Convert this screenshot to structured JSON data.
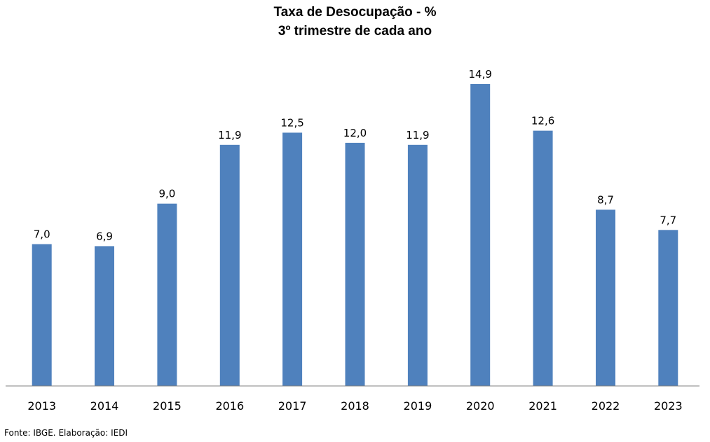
{
  "chart_data": {
    "type": "bar",
    "title": "Taxa de Desocupação - %",
    "subtitle": "3º trimestre de cada ano",
    "categories": [
      "2013",
      "2014",
      "2015",
      "2016",
      "2017",
      "2018",
      "2019",
      "2020",
      "2021",
      "2022",
      "2023"
    ],
    "values": [
      7.0,
      6.9,
      9.0,
      11.9,
      12.5,
      12.0,
      11.9,
      14.9,
      12.6,
      8.7,
      7.7
    ],
    "value_labels": [
      "7,0",
      "6,9",
      "9,0",
      "11,9",
      "12,5",
      "12,0",
      "11,9",
      "14,9",
      "12,6",
      "8,7",
      "7,7"
    ],
    "ylim": [
      0,
      15.8
    ],
    "grid": false,
    "legend": "none",
    "bar_color": "#4F81BD"
  },
  "footer": {
    "source": "Fonte: IBGE. Elaboração: IEDI"
  }
}
